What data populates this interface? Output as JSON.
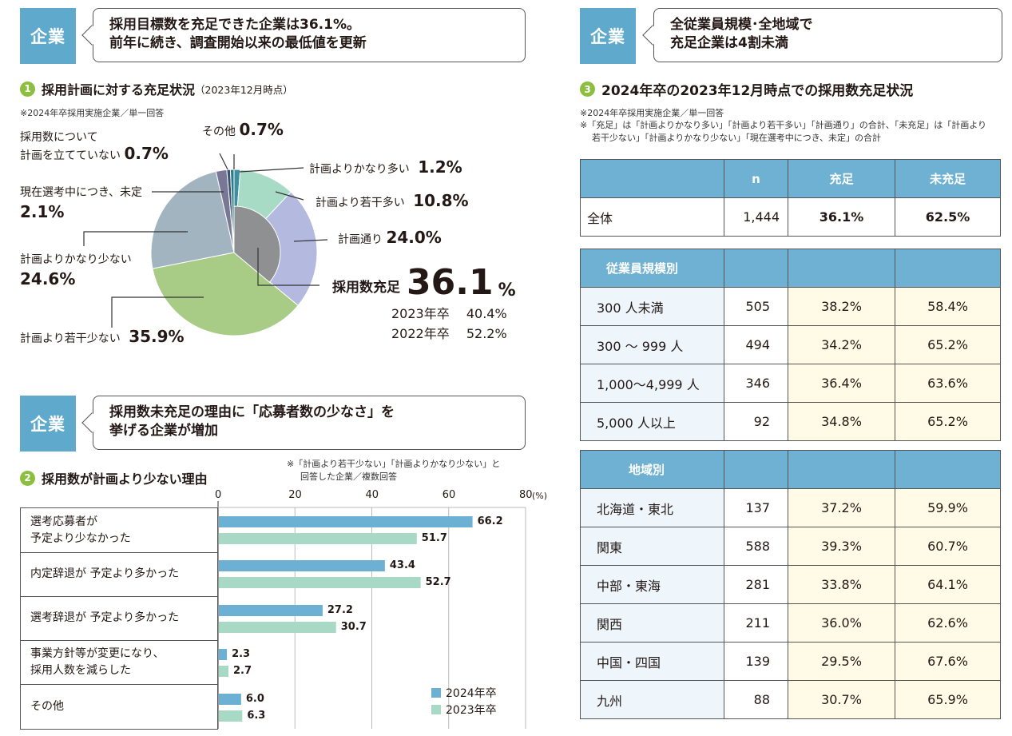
{
  "left_top": {
    "tag": "企業",
    "callout": [
      "採用目標数を充足できた企業は36.1%。",
      "前年に続き、調査開始以来の最低値を更新"
    ],
    "section_num": "1",
    "section_title": "採用計画に対する充足状況",
    "section_sub": "（2023年12月時点）",
    "note": "※2024年卒採用実施企業／単一回答"
  },
  "pie": {
    "labels": {
      "none_a": "採用数について",
      "none_b": "計画を立てていない",
      "none_v": "0.7%",
      "other": "その他",
      "other_v": "0.7%",
      "much_more": "計画よりかなり多い",
      "much_more_v": "1.2%",
      "more": "計画より若干多い",
      "more_v": "10.8%",
      "exact": "計画通り",
      "exact_v": "24.0%",
      "pending": "現在選考中につき、未定",
      "pending_v": "2.1%",
      "much_less": "計画よりかなり少ない",
      "much_less_v": "24.6%",
      "less": "計画より若干少ない",
      "less_v": "35.9%",
      "fill_label": "採用数充足",
      "fill_num": "36.1",
      "fill_pct": "%",
      "y2023": "2023年卒",
      "y2023_v": "40.4%",
      "y2022": "2022年卒",
      "y2022_v": "52.2%"
    }
  },
  "left_bottom": {
    "tag": "企業",
    "callout": [
      "採用数未充足の理由に「応募者数の少なさ」を",
      "挙げる企業が増加"
    ],
    "section_num": "2",
    "section_title": "採用数が計画より少ない理由",
    "note": [
      "※「計画より若干少ない」「計画よりかなり少ない」と",
      "回答した企業／複数回答"
    ]
  },
  "right": {
    "tag": "企業",
    "callout": [
      "全従業員規模･全地域で",
      "充足企業は4割未満"
    ],
    "section_num": "3",
    "section_title": "2024年卒の2023年12月時点での採用数充足状況",
    "notes": [
      "※2024年卒採用実施企業／単一回答",
      "※「充足」は「計画よりかなり多い」「計画より若干多い」「計画通り」の合計、「未充足」は「計画より",
      "若干少ない」「計画よりかなり少ない」「現在選考中につき、未定」の合計"
    ],
    "headers": [
      "n",
      "充足",
      "未充足"
    ],
    "total": [
      "全体",
      "1,444",
      "36.1%",
      "62.5%"
    ],
    "size_title": "従業員規模別",
    "size_rows": [
      [
        "300 人未満",
        "505",
        "38.2%",
        "58.4%"
      ],
      [
        "300 ～ 999 人",
        "494",
        "34.2%",
        "65.2%"
      ],
      [
        "1,000～4,999 人",
        "346",
        "36.4%",
        "63.6%"
      ],
      [
        "5,000 人以上",
        "92",
        "34.8%",
        "65.2%"
      ]
    ],
    "region_title": "地域別",
    "region_rows": [
      [
        "北海道・東北",
        "137",
        "37.2%",
        "59.9%"
      ],
      [
        "関東",
        "588",
        "39.3%",
        "60.7%"
      ],
      [
        "中部・東海",
        "281",
        "33.8%",
        "64.1%"
      ],
      [
        "関西",
        "211",
        "36.0%",
        "62.6%"
      ],
      [
        "中国・四国",
        "139",
        "29.5%",
        "67.6%"
      ],
      [
        "九州",
        "88",
        "30.7%",
        "65.9%"
      ]
    ]
  },
  "colors": {
    "accent": "#5ea9cc",
    "bar2024": "#6cb0d3",
    "bar2023": "#a8d9c6",
    "green_num": "#8cbf3f"
  },
  "chart_data": [
    {
      "type": "pie",
      "title": "採用計画に対する充足状況",
      "slices": [
        {
          "name": "計画よりかなり多い",
          "value": 1.2,
          "color": "#3d8fa0"
        },
        {
          "name": "計画より若干多い",
          "value": 10.8,
          "color": "#a7dbc6"
        },
        {
          "name": "計画通り",
          "value": 24.0,
          "color": "#b3b9df"
        },
        {
          "name": "計画より若干少ない",
          "value": 35.9,
          "color": "#a8cc85"
        },
        {
          "name": "計画よりかなり少ない",
          "value": 24.6,
          "color": "#a2b4bf"
        },
        {
          "name": "現在選考中につき、未定",
          "value": 2.1,
          "color": "#787896"
        },
        {
          "name": "採用数について計画を立てていない",
          "value": 0.7,
          "color": "#3a5070"
        },
        {
          "name": "その他",
          "value": 0.7,
          "color": "#2c7a8a"
        }
      ],
      "inner": {
        "name": "採用数充足",
        "value": 36.1,
        "color": "#8e9092"
      }
    },
    {
      "type": "bar",
      "title": "採用数が計画より少ない理由",
      "categories": [
        [
          "選考応募者が",
          "予定より少なかった"
        ],
        [
          "内定辞退が 予定より多かった"
        ],
        [
          "選考辞退が 予定より多かった"
        ],
        [
          "事業方針等が変更になり、",
          "採用人数を減らした"
        ],
        [
          "その他"
        ]
      ],
      "series": [
        {
          "name": "2024年卒",
          "values": [
            66.2,
            43.4,
            27.2,
            2.3,
            6.0
          ],
          "labels": [
            "66.2",
            "43.4",
            "27.2",
            "2.3",
            "6.0"
          ]
        },
        {
          "name": "2023年卒",
          "values": [
            51.7,
            52.7,
            30.7,
            2.7,
            6.3
          ],
          "labels": [
            "51.7",
            "52.7",
            "30.7",
            "2.7",
            "6.3"
          ]
        }
      ],
      "xlim": [
        0,
        80
      ],
      "xticks": [
        "0",
        "20",
        "40",
        "60",
        "80"
      ],
      "unit": "(%)",
      "grid": true
    }
  ]
}
